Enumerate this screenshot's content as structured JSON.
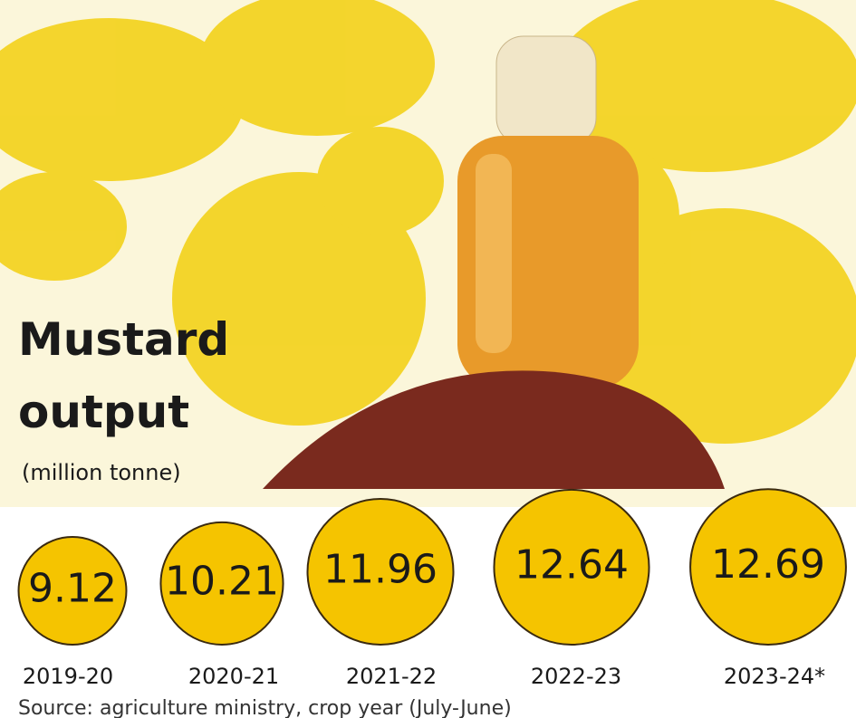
{
  "chart_data": {
    "type": "bubble",
    "title": "Mustard output",
    "subtitle": "(million tonne)",
    "categories": [
      "2019-20",
      "2020-21",
      "2021-22",
      "2022-23",
      "2023-24*"
    ],
    "values": [
      9.12,
      10.21,
      11.96,
      12.64,
      12.69
    ],
    "color": "#f5c400",
    "source": "Source: agriculture ministry, crop year (July-June)"
  }
}
